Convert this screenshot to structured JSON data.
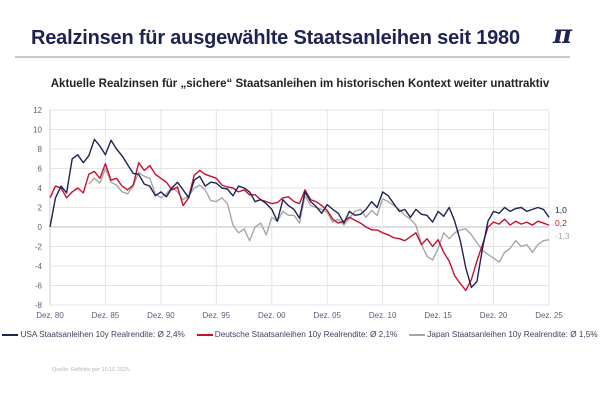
{
  "header": {
    "title": "Realzinsen für ausgewählte Staatsanleihen seit 1980",
    "logo": "π"
  },
  "chart_data": {
    "type": "line",
    "title": "Aktuelle Realzinsen für „sichere“ Staatsanleihen im historischen Kontext weiter unattraktiv",
    "xlabel": "",
    "ylabel": "",
    "ylim": [
      -8,
      12
    ],
    "yticks": [
      12,
      10,
      8,
      6,
      4,
      2,
      0,
      -2,
      -4,
      -6,
      -8
    ],
    "ytick_labels": [
      "12",
      "10",
      "8",
      "6",
      "4",
      "2",
      "0",
      "-2",
      "-4",
      "-6",
      "-8"
    ],
    "xlim": [
      1980.917,
      2025.917
    ],
    "xticks": [
      1980.917,
      1985.917,
      1990.917,
      1995.917,
      2000.917,
      2005.917,
      2010.917,
      2015.917,
      2020.917,
      2025.917
    ],
    "xtick_labels": [
      "Dez. 80",
      "Dez. 85",
      "Dez. 90",
      "Dez. 95",
      "Dez. 00",
      "Dez. 05",
      "Dez. 10",
      "Dez. 15",
      "Dez. 20",
      "Dez. 25"
    ],
    "grid": true,
    "legend_position": "bottom",
    "x_start": 1980.917,
    "x_step_years": 0.5,
    "series": [
      {
        "name": "USA Staatsanleihen 10y Realrendite: Ø 2,4%",
        "color": "#1d2352",
        "end_label": "1,0",
        "values": [
          0.0,
          3.0,
          4.2,
          3.5,
          7.0,
          7.4,
          6.6,
          7.3,
          9.0,
          8.3,
          7.4,
          8.9,
          8.0,
          7.3,
          6.4,
          5.5,
          5.4,
          4.4,
          4.2,
          3.2,
          3.6,
          3.1,
          4.0,
          4.6,
          3.8,
          3.0,
          4.8,
          5.2,
          4.2,
          4.6,
          4.5,
          4.0,
          3.9,
          3.2,
          4.2,
          4.0,
          3.6,
          2.6,
          2.8,
          2.4,
          1.8,
          0.6,
          2.8,
          2.2,
          1.8,
          0.9,
          3.6,
          2.6,
          2.1,
          1.4,
          2.3,
          1.8,
          1.4,
          0.4,
          1.6,
          1.2,
          1.3,
          1.8,
          2.6,
          2.0,
          3.6,
          3.2,
          2.4,
          1.6,
          1.8,
          1.0,
          1.8,
          1.3,
          1.2,
          0.5,
          1.6,
          1.1,
          2.0,
          0.6,
          -1.4,
          -4.2,
          -6.2,
          -5.6,
          -2.2,
          0.6,
          1.6,
          1.4,
          2.0,
          1.6,
          1.9,
          2.0,
          1.6,
          1.8,
          2.0,
          1.8,
          1.0
        ]
      },
      {
        "name": "Deutsche Staatsanleihen 10y Realrendite: Ø 2,1%",
        "color": "#c8102e",
        "end_label": "0,2",
        "values": [
          3.0,
          4.2,
          4.0,
          3.0,
          3.6,
          4.0,
          3.5,
          5.4,
          5.7,
          5.0,
          6.5,
          4.8,
          5.0,
          4.2,
          3.8,
          4.3,
          6.6,
          5.8,
          6.3,
          5.4,
          5.0,
          4.6,
          3.8,
          4.1,
          2.2,
          3.0,
          5.3,
          5.8,
          5.4,
          5.2,
          5.0,
          4.3,
          4.1,
          4.0,
          3.6,
          3.8,
          3.3,
          3.3,
          2.8,
          2.6,
          2.4,
          2.5,
          3.0,
          3.1,
          2.6,
          2.4,
          3.8,
          2.8,
          2.6,
          2.2,
          1.7,
          0.8,
          0.4,
          0.6,
          1.0,
          0.7,
          0.4,
          0.0,
          -0.3,
          -0.3,
          -0.6,
          -0.8,
          -1.1,
          -1.2,
          -1.4,
          -1.0,
          -0.6,
          -1.8,
          -1.2,
          -2.0,
          -1.3,
          -2.6,
          -3.5,
          -5.0,
          -5.8,
          -6.5,
          -5.4,
          -3.5,
          -1.8,
          0.0,
          0.5,
          0.3,
          0.8,
          0.2,
          0.6,
          0.3,
          0.5,
          0.2,
          0.6,
          0.4,
          0.2
        ]
      },
      {
        "name": "Japan Staatsanleihen 10y Realrendite: Ø 1,5%",
        "color": "#a6a6a6",
        "end_label": "-1,3",
        "values": [
          null,
          null,
          null,
          null,
          null,
          null,
          null,
          4.4,
          5.0,
          4.5,
          6.0,
          4.6,
          4.3,
          3.6,
          3.4,
          4.2,
          5.6,
          5.2,
          5.0,
          3.4,
          3.0,
          3.4,
          4.1,
          3.6,
          2.8,
          3.2,
          4.0,
          4.3,
          3.8,
          2.7,
          2.6,
          3.0,
          2.4,
          0.2,
          -0.6,
          -0.2,
          -1.4,
          0.0,
          0.4,
          -0.8,
          1.0,
          0.6,
          1.6,
          1.2,
          1.2,
          0.4,
          3.2,
          2.2,
          2.0,
          1.8,
          1.5,
          0.5,
          0.8,
          0.2,
          0.9,
          1.6,
          1.8,
          1.0,
          1.7,
          1.2,
          2.9,
          2.6,
          2.2,
          1.8,
          1.2,
          0.8,
          0.2,
          -1.8,
          -3.0,
          -3.4,
          -2.2,
          -0.6,
          -1.2,
          -0.6,
          -0.3,
          -0.2,
          -0.8,
          -1.6,
          -2.4,
          -2.8,
          -3.2,
          -3.6,
          -2.6,
          -2.2,
          -1.4,
          -2.0,
          -1.8,
          -2.6,
          -1.8,
          -1.4,
          -1.3
        ]
      }
    ]
  },
  "source": "Quelle: Refinitiv per 15.10.2025."
}
